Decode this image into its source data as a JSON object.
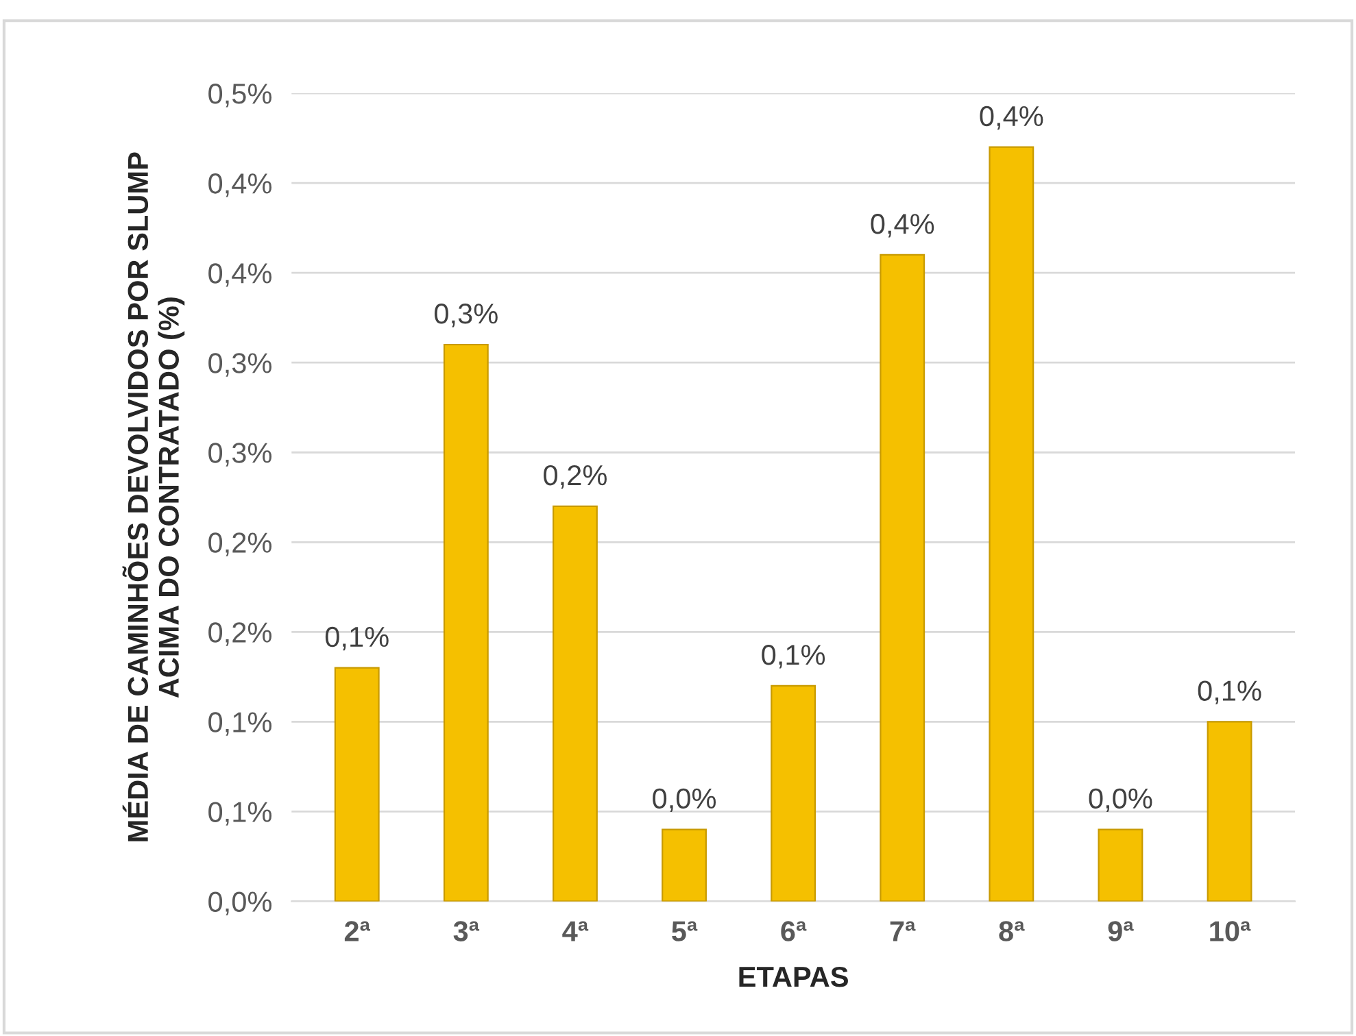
{
  "chart_data": {
    "type": "bar",
    "xlabel": "ETAPAS",
    "ylabel": "MÉDIA DE CAMINHÕES DEVOLVIDOS POR SLUMP\nACIMA DO CONTRATADO (%)",
    "categories": [
      "2ª",
      "3ª",
      "4ª",
      "5ª",
      "6ª",
      "7ª",
      "8ª",
      "9ª",
      "10ª"
    ],
    "values": [
      0.13,
      0.31,
      0.22,
      0.04,
      0.12,
      0.36,
      0.42,
      0.04,
      0.1
    ],
    "value_labels": [
      "0,1%",
      "0,3%",
      "0,2%",
      "0,0%",
      "0,1%",
      "0,4%",
      "0,4%",
      "0,0%",
      "0,1%"
    ],
    "color": "#f5c000",
    "ylim": [
      0,
      0.45
    ],
    "yticks": [
      {
        "value": 0,
        "label": "0,0%"
      },
      {
        "value": 0.05,
        "label": "0,1%"
      },
      {
        "value": 0.1,
        "label": "0,1%"
      },
      {
        "value": 0.15,
        "label": "0,2%"
      },
      {
        "value": 0.2,
        "label": "0,2%"
      },
      {
        "value": 0.25,
        "label": "0,3%"
      },
      {
        "value": 0.3,
        "label": "0,3%"
      },
      {
        "value": 0.35,
        "label": "0,4%"
      },
      {
        "value": 0.4,
        "label": "0,4%"
      },
      {
        "value": 0.45,
        "label": "0,5%"
      }
    ],
    "grid": "y"
  }
}
